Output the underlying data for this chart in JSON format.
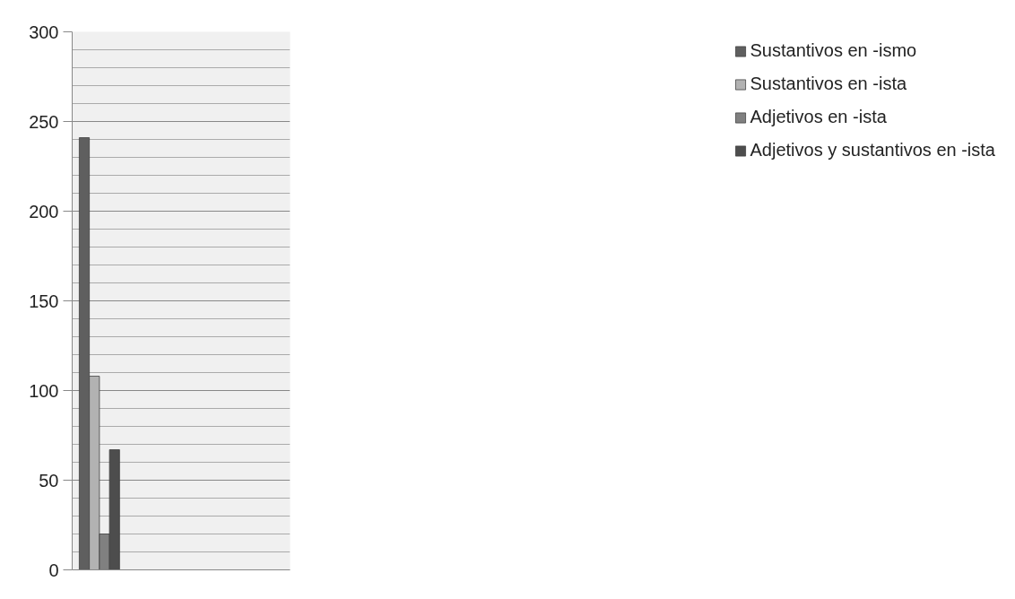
{
  "chart_data": {
    "type": "bar",
    "categories": [
      null,
      null,
      null,
      null
    ],
    "series": [
      {
        "name": "Sustantivos en -ismo",
        "color": "#5f5f5f",
        "values": [
          241,
          null,
          null,
          null
        ]
      },
      {
        "name": "Sustantivos en -ista",
        "color": "#b2b2b2",
        "values": [
          108,
          null,
          null,
          null
        ]
      },
      {
        "name": "Adjetivos en -ista",
        "color": "#808080",
        "values": [
          20,
          null,
          null,
          null
        ]
      },
      {
        "name": "Adjetivos y sustantivos en -ista",
        "color": "#4d4d4d",
        "values": [
          67,
          null,
          null,
          null
        ]
      }
    ],
    "ylim": [
      0,
      300
    ],
    "yticks": [
      0,
      50,
      100,
      150,
      200,
      250,
      300
    ],
    "grid": "y",
    "legend": "right"
  }
}
